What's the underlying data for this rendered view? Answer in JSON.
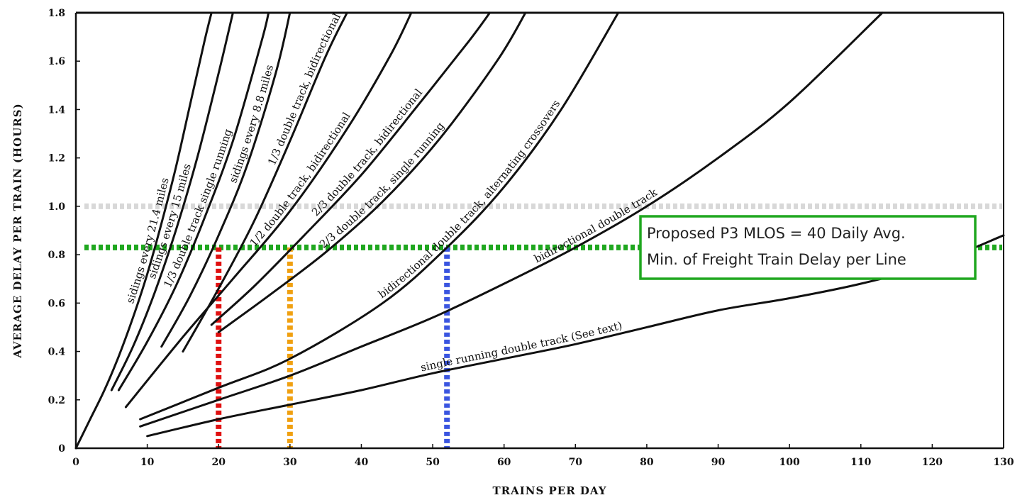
{
  "chart_data": {
    "type": "line",
    "title": "",
    "xlabel": "TRAINS PER DAY",
    "ylabel": "AVERAGE DELAY PER TRAIN (HOURS)",
    "xlim": [
      0,
      130
    ],
    "ylim": [
      0,
      1.8
    ],
    "x_ticks": [
      "0",
      "10",
      "20",
      "30",
      "40",
      "50",
      "60",
      "70",
      "80",
      "90",
      "100",
      "110",
      "120",
      "130"
    ],
    "y_ticks": [
      "0",
      "0.2",
      "0.4",
      "0.6",
      "0.8",
      "1.0",
      "1.2",
      "1.4",
      "1.6",
      "1.8"
    ],
    "series": [
      {
        "name": "sidings every 21.4 miles",
        "color": "#111111",
        "x": [
          0,
          2,
          4,
          6,
          8,
          10,
          12,
          14,
          16,
          18,
          19
        ],
        "y": [
          0,
          0.12,
          0.24,
          0.38,
          0.54,
          0.72,
          0.93,
          1.16,
          1.42,
          1.68,
          1.8
        ]
      },
      {
        "name": "sidings every 15 miles",
        "color": "#111111",
        "x": [
          5,
          8,
          11,
          14,
          17,
          20,
          22
        ],
        "y": [
          0.24,
          0.42,
          0.64,
          0.9,
          1.2,
          1.55,
          1.8
        ]
      },
      {
        "name": "1/3 double track single running",
        "color": "#111111",
        "x": [
          6,
          10,
          14,
          18,
          22,
          26,
          27
        ],
        "y": [
          0.24,
          0.44,
          0.67,
          0.95,
          1.27,
          1.68,
          1.8
        ]
      },
      {
        "name": "sidings every 8.8 miles",
        "color": "#111111",
        "x": [
          12,
          16,
          20,
          24,
          28,
          30
        ],
        "y": [
          0.42,
          0.63,
          0.88,
          1.17,
          1.55,
          1.8
        ]
      },
      {
        "name": "1/3 double track, bidirectional",
        "color": "#111111",
        "x": [
          15,
          20,
          25,
          30,
          35,
          38
        ],
        "y": [
          0.4,
          0.66,
          0.94,
          1.27,
          1.62,
          1.8
        ]
      },
      {
        "name": "1/2 double track, bidirectional",
        "color": "#111111",
        "x": [
          7,
          15,
          22,
          30,
          38,
          44,
          47
        ],
        "y": [
          0.17,
          0.46,
          0.7,
          0.98,
          1.32,
          1.62,
          1.8
        ]
      },
      {
        "name": "2/3 double track, bidirectional",
        "color": "#111111",
        "x": [
          19,
          25,
          32,
          40,
          48,
          55,
          58
        ],
        "y": [
          0.51,
          0.67,
          0.88,
          1.13,
          1.42,
          1.68,
          1.8
        ]
      },
      {
        "name": "2/3 double track, single running",
        "color": "#111111",
        "x": [
          20,
          27,
          35,
          43,
          51,
          59,
          63
        ],
        "y": [
          0.48,
          0.63,
          0.81,
          1.02,
          1.28,
          1.6,
          1.8
        ]
      },
      {
        "name": "bidirectional double track, alternating crossovers",
        "color": "#111111",
        "x": [
          9,
          20,
          30,
          43,
          52,
          60,
          68,
          76
        ],
        "y": [
          0.12,
          0.25,
          0.37,
          0.6,
          0.83,
          1.08,
          1.4,
          1.8
        ]
      },
      {
        "name": "bidirectional double track",
        "color": "#111111",
        "x": [
          9,
          20,
          30,
          40,
          50,
          60,
          70,
          80,
          90,
          100,
          113
        ],
        "y": [
          0.09,
          0.2,
          0.3,
          0.42,
          0.54,
          0.68,
          0.83,
          1.0,
          1.2,
          1.43,
          1.8
        ]
      },
      {
        "name": "single running double track (See text)",
        "color": "#111111",
        "x": [
          10,
          20,
          30,
          40,
          50,
          60,
          70,
          80,
          90,
          100,
          110,
          120,
          130
        ],
        "y": [
          0.05,
          0.12,
          0.18,
          0.24,
          0.31,
          0.37,
          0.43,
          0.5,
          0.57,
          0.62,
          0.68,
          0.76,
          0.88
        ]
      }
    ],
    "reference_lines": [
      {
        "orientation": "horizontal",
        "y": 1.0,
        "color": "#d8d8d8",
        "style": "dotted"
      },
      {
        "orientation": "horizontal",
        "y": 0.83,
        "color": "#1fa71f",
        "style": "dotted"
      },
      {
        "orientation": "vertical",
        "x": 20,
        "color": "#e01010",
        "style": "dotted"
      },
      {
        "orientation": "vertical",
        "x": 30,
        "color": "#f0a010",
        "style": "dotted"
      },
      {
        "orientation": "vertical",
        "x": 52,
        "color": "#3a55e0",
        "style": "dotted"
      }
    ],
    "annotation": {
      "lines": [
        "Proposed P3 MLOS = 40 Daily Avg.",
        "Min. of Freight Train Delay per Line"
      ],
      "border_color": "#1fa71f"
    },
    "grid": false
  }
}
